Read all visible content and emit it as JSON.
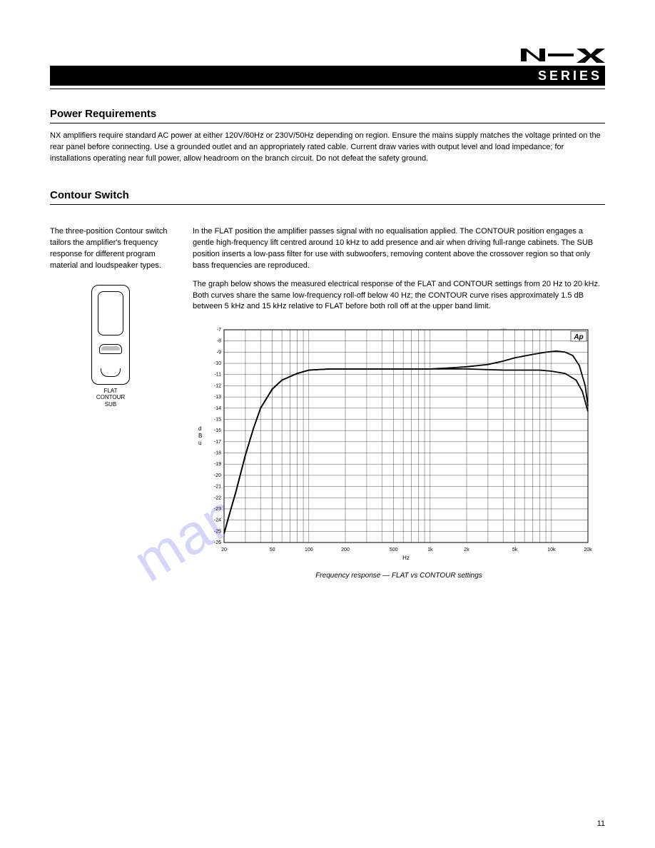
{
  "logo": {
    "series_text": "SERIES"
  },
  "section_power": {
    "title": "Power Requirements",
    "body": "NX amplifiers require standard AC power at either 120V/60Hz or 230V/50Hz depending on region. Ensure the mains supply matches the voltage printed on the rear panel before connecting. Use a grounded outlet and an appropriately rated cable. Current draw varies with output level and load impedance; for installations operating near full power, allow headroom on the branch circuit. Do not defeat the safety ground."
  },
  "section_contour": {
    "title": "Contour Switch",
    "left": "The three-position Contour switch tailors the amplifier's frequency response for different program material and loudspeaker types.",
    "switch_labels": "FLAT\nCONTOUR\nSUB",
    "right_top": "In the FLAT position the amplifier passes signal with no equalisation applied. The CONTOUR position engages a gentle high-frequency lift centred around 10 kHz to add presence and air when driving full-range cabinets. The SUB position inserts a low-pass filter for use with subwoofers, removing content above the crossover region so that only bass frequencies are reproduced.",
    "right_bottom": "The graph below shows the measured electrical response of the FLAT and CONTOUR settings from 20 Hz to 20 kHz. Both curves share the same low-frequency roll-off below 40 Hz; the CONTOUR curve rises approximately 1.5 dB between 5 kHz and 15 kHz relative to FLAT before both roll off at the upper band limit."
  },
  "chart": {
    "type": "line",
    "x_scale": "log",
    "xlim": [
      20,
      20000
    ],
    "xticks": [
      20,
      50,
      100,
      200,
      500,
      1000,
      2000,
      5000,
      10000,
      20000
    ],
    "xtick_labels": [
      "20",
      "50",
      "100",
      "200",
      "500",
      "1k",
      "2k",
      "5k",
      "10k",
      "20k"
    ],
    "xlabel": "Hz",
    "ylim": [
      -26,
      -7
    ],
    "yticks": [
      -7,
      -8,
      -9,
      -10,
      -11,
      -12,
      -13,
      -14,
      -15,
      -16,
      -17,
      -18,
      -19,
      -20,
      -21,
      -22,
      -23,
      -24,
      -25,
      -26
    ],
    "ylabel": "d\nB\nu",
    "label_fontsize": 8,
    "tick_fontsize": 7,
    "line_color": "#000000",
    "line_width": 1.8,
    "grid_color": "#000000",
    "grid_width": 0.35,
    "background_color": "#ffffff",
    "corner_label": "Ap",
    "series": {
      "flat": [
        [
          20,
          -25.2
        ],
        [
          22,
          -23.6
        ],
        [
          25,
          -21.5
        ],
        [
          30,
          -18.2
        ],
        [
          35,
          -15.8
        ],
        [
          40,
          -14.0
        ],
        [
          50,
          -12.3
        ],
        [
          60,
          -11.5
        ],
        [
          80,
          -10.9
        ],
        [
          100,
          -10.6
        ],
        [
          150,
          -10.5
        ],
        [
          200,
          -10.5
        ],
        [
          500,
          -10.5
        ],
        [
          1000,
          -10.5
        ],
        [
          2000,
          -10.5
        ],
        [
          4000,
          -10.6
        ],
        [
          6000,
          -10.6
        ],
        [
          8000,
          -10.6
        ],
        [
          10000,
          -10.7
        ],
        [
          13000,
          -10.9
        ],
        [
          16000,
          -11.5
        ],
        [
          18000,
          -12.5
        ],
        [
          20000,
          -14.3
        ]
      ],
      "contour": [
        [
          20,
          -25.2
        ],
        [
          22,
          -23.6
        ],
        [
          25,
          -21.5
        ],
        [
          30,
          -18.2
        ],
        [
          35,
          -15.8
        ],
        [
          40,
          -14.0
        ],
        [
          50,
          -12.3
        ],
        [
          60,
          -11.5
        ],
        [
          80,
          -10.9
        ],
        [
          100,
          -10.6
        ],
        [
          150,
          -10.5
        ],
        [
          200,
          -10.5
        ],
        [
          500,
          -10.5
        ],
        [
          1000,
          -10.5
        ],
        [
          1500,
          -10.4
        ],
        [
          2000,
          -10.3
        ],
        [
          3000,
          -10.1
        ],
        [
          4000,
          -9.8
        ],
        [
          5000,
          -9.5
        ],
        [
          7000,
          -9.2
        ],
        [
          9000,
          -9.0
        ],
        [
          11000,
          -8.9
        ],
        [
          13000,
          -9.0
        ],
        [
          15000,
          -9.3
        ],
        [
          17000,
          -10.2
        ],
        [
          19000,
          -12.0
        ],
        [
          20000,
          -13.8
        ]
      ]
    },
    "caption": "Frequency response — FLAT vs CONTOUR settings"
  },
  "watermark": "manualshive.com",
  "page_number": "11"
}
